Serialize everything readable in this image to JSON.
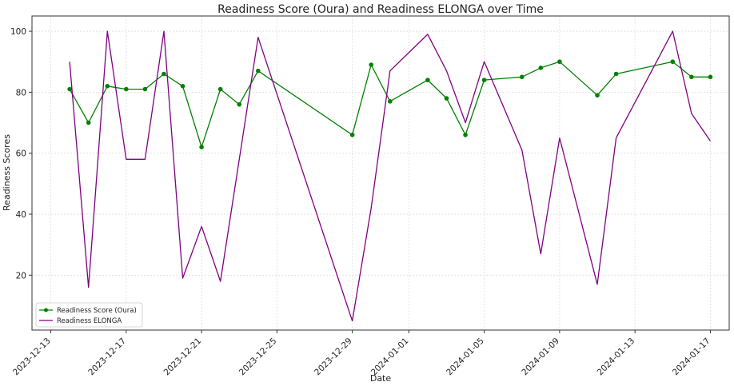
{
  "chart_data": {
    "type": "line",
    "title": "Readiness Score (Oura) and Readiness ELONGA over Time",
    "xlabel": "Date",
    "ylabel": "Readiness Scores",
    "xlim": [
      "2023-12-12",
      "2024-01-18"
    ],
    "ylim": [
      2,
      105
    ],
    "yticks": [
      20,
      40,
      60,
      80,
      100
    ],
    "xticks": [
      "2023-12-13",
      "2023-12-17",
      "2023-12-21",
      "2023-12-25",
      "2023-12-29",
      "2024-01-01",
      "2024-01-05",
      "2024-01-09",
      "2024-01-13",
      "2024-01-17"
    ],
    "grid": true,
    "legend_position": "lower-left",
    "series": [
      {
        "name": "Readiness Score (Oura)",
        "color": "#008000",
        "marker": "circle",
        "x": [
          "2023-12-14",
          "2023-12-15",
          "2023-12-16",
          "2023-12-17",
          "2023-12-18",
          "2023-12-19",
          "2023-12-20",
          "2023-12-21",
          "2023-12-22",
          "2023-12-23",
          "2023-12-24",
          "2023-12-29",
          "2023-12-30",
          "2023-12-31",
          "2024-01-02",
          "2024-01-03",
          "2024-01-04",
          "2024-01-05",
          "2024-01-07",
          "2024-01-08",
          "2024-01-09",
          "2024-01-11",
          "2024-01-12",
          "2024-01-15",
          "2024-01-16",
          "2024-01-17"
        ],
        "values": [
          81,
          70,
          82,
          81,
          81,
          86,
          82,
          62,
          81,
          76,
          87,
          66,
          89,
          77,
          84,
          78,
          66,
          84,
          85,
          88,
          90,
          79,
          86,
          90,
          85,
          85
        ]
      },
      {
        "name": "Readiness ELONGA",
        "color": "#800080",
        "marker": "none",
        "x": [
          "2023-12-14",
          "2023-12-15",
          "2023-12-16",
          "2023-12-17",
          "2023-12-18",
          "2023-12-19",
          "2023-12-20",
          "2023-12-21",
          "2023-12-22",
          "2023-12-24",
          "2023-12-29",
          "2023-12-30",
          "2023-12-31",
          "2024-01-02",
          "2024-01-03",
          "2024-01-04",
          "2024-01-05",
          "2024-01-07",
          "2024-01-08",
          "2024-01-09",
          "2024-01-11",
          "2024-01-12",
          "2024-01-15",
          "2024-01-16",
          "2024-01-17"
        ],
        "values": [
          90,
          16,
          100,
          58,
          58,
          100,
          19,
          36,
          18,
          98,
          5,
          42,
          87,
          99,
          87,
          70,
          90,
          61,
          27,
          65,
          17,
          65,
          100,
          73,
          64
        ]
      }
    ]
  }
}
